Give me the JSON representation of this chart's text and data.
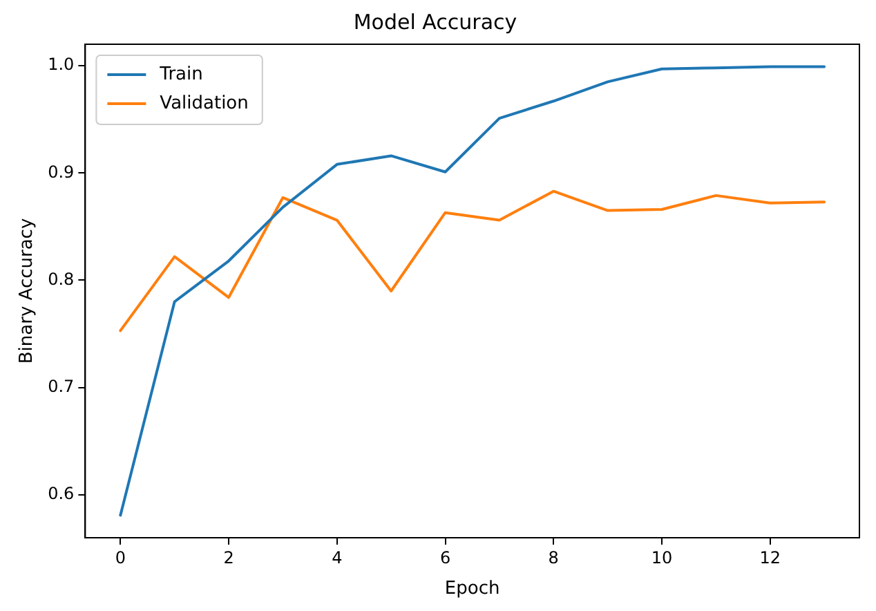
{
  "chart_data": {
    "type": "line",
    "title": "Model Accuracy",
    "xlabel": "Epoch",
    "ylabel": "Binary Accuracy",
    "x": [
      0,
      1,
      2,
      3,
      4,
      5,
      6,
      7,
      8,
      9,
      10,
      11,
      12,
      13
    ],
    "series": [
      {
        "name": "Train",
        "color": "#1f77b4",
        "values": [
          0.581,
          0.78,
          0.818,
          0.868,
          0.908,
          0.916,
          0.901,
          0.951,
          0.967,
          0.985,
          0.997,
          0.998,
          0.999,
          0.999
        ]
      },
      {
        "name": "Validation",
        "color": "#ff7f0e",
        "values": [
          0.753,
          0.822,
          0.784,
          0.877,
          0.856,
          0.79,
          0.863,
          0.856,
          0.883,
          0.865,
          0.866,
          0.879,
          0.872,
          0.873
        ]
      }
    ],
    "xlim": [
      -0.65,
      13.65
    ],
    "xticks": [
      0,
      2,
      4,
      6,
      8,
      10,
      12
    ],
    "ylim": [
      0.56,
      1.02
    ],
    "yticks": [
      0.6,
      0.7,
      0.8,
      0.9,
      {
        "value": 1,
        "label": "1.0"
      }
    ],
    "grid": false,
    "legend": "top left",
    "marker": "none",
    "line_style": "solid"
  }
}
